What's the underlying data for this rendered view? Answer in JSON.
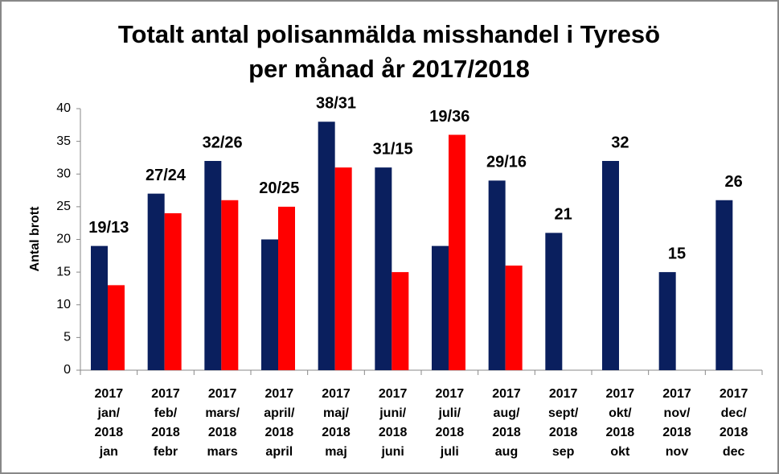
{
  "chart_data": {
    "type": "bar",
    "title": [
      "Totalt antal polisanmälda misshandel i Tyresö",
      "per månad år 2017/2018"
    ],
    "y_label": "Antal brott",
    "categories": [
      [
        "2017",
        "jan/",
        "2018",
        "jan"
      ],
      [
        "2017",
        "feb/",
        "2018",
        "febr"
      ],
      [
        "2017",
        "mars/",
        "2018",
        "mars"
      ],
      [
        "2017",
        "april/",
        "2018",
        "april"
      ],
      [
        "2017",
        "maj/",
        "2018",
        "maj"
      ],
      [
        "2017",
        "juni/",
        "2018",
        "juni"
      ],
      [
        "2017",
        "juli/",
        "2018",
        "juli"
      ],
      [
        "2017",
        "aug/",
        "2018",
        "aug"
      ],
      [
        "2017",
        "sept/",
        "2018",
        "sep"
      ],
      [
        "2017",
        "okt/",
        "2018",
        "okt"
      ],
      [
        "2017",
        "nov/",
        "2018",
        "nov"
      ],
      [
        "2017",
        "dec/",
        "2018",
        "dec"
      ]
    ],
    "series": [
      {
        "color": "#0a1f5e",
        "values": [
          19,
          27,
          32,
          20,
          38,
          31,
          19,
          29,
          21,
          32,
          15,
          26
        ]
      },
      {
        "color": "#ff0000",
        "values": [
          13,
          24,
          26,
          25,
          31,
          15,
          36,
          16,
          null,
          null,
          null,
          null
        ]
      }
    ],
    "value_labels": [
      "19/13",
      "27/24",
      "32/26",
      "20/25",
      "38/31",
      "31/15",
      "19/36",
      "29/16",
      "21",
      "32",
      "15",
      "26"
    ],
    "ylim": [
      0,
      40
    ],
    "yticks": [
      0,
      5,
      10,
      15,
      20,
      25,
      30,
      35,
      40
    ],
    "grid": false
  }
}
